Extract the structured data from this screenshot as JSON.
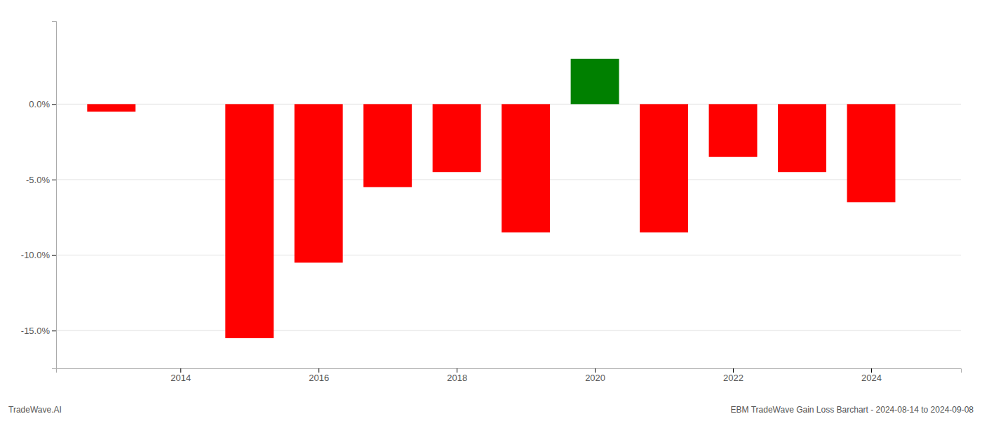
{
  "chart_data": {
    "type": "bar",
    "x": [
      2013,
      2015,
      2016,
      2017,
      2018,
      2019,
      2020,
      2021,
      2022,
      2023,
      2024
    ],
    "values": [
      -0.5,
      -15.5,
      -10.5,
      -5.5,
      -4.5,
      -8.5,
      3.0,
      -8.5,
      -3.5,
      -4.5,
      -6.5
    ],
    "colors": [
      "#ff0000",
      "#ff0000",
      "#ff0000",
      "#ff0000",
      "#ff0000",
      "#ff0000",
      "#008000",
      "#ff0000",
      "#ff0000",
      "#ff0000",
      "#ff0000"
    ],
    "xlim": [
      2012.2,
      2025.3
    ],
    "xticks": [
      2014,
      2016,
      2018,
      2020,
      2022,
      2024
    ],
    "ylim": [
      -17.5,
      5.5
    ],
    "yticks": [
      {
        "value": 0.0,
        "label": "0.0%"
      },
      {
        "value": -5.0,
        "label": "-5.0%"
      },
      {
        "value": -10.0,
        "label": "-10.0%"
      },
      {
        "value": -15.0,
        "label": "-15.0%"
      }
    ],
    "grid": true,
    "annotations": [
      "TradeWave.AI",
      "EBM TradeWave Gain Loss Barchart - 2024-08-14 to 2024-09-08"
    ]
  }
}
